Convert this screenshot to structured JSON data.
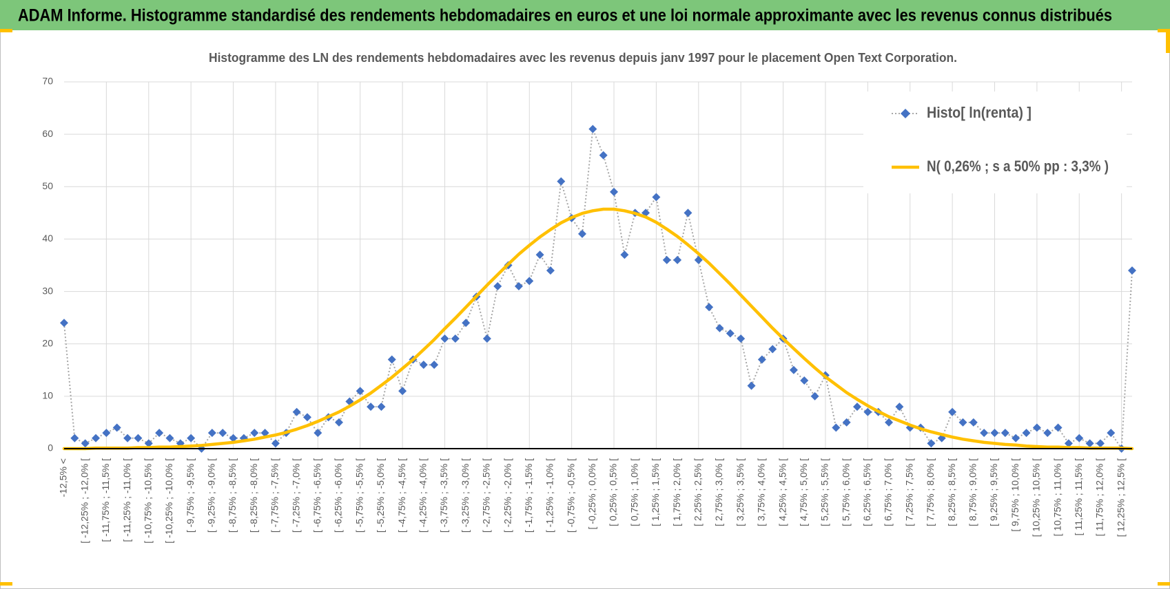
{
  "header": {
    "title": "ADAM Informe. Histogramme standardisé des rendements hebdomadaires en euros et une loi normale approximante avec les revenus connus distribués"
  },
  "chart_data": {
    "type": "line",
    "title": "Histogramme des LN des rendements hebdomadaires avec les revenus depuis janv 1997 pour le placement Open Text Corporation.",
    "categories": [
      "-12,5% <",
      null,
      "[ -12,25% ; -12,0% [",
      null,
      "[ -11,75% ; -11,5% [",
      null,
      "[ -11,25% ; -11,0% [",
      null,
      "[ -10,75% ; -10,5% [",
      null,
      "[ -10,25% ; -10,0% [",
      null,
      "[ -9,75% ; -9,5% [",
      null,
      "[ -9,25% ; -9,0% [",
      null,
      "[ -8,75% ; -8,5% [",
      null,
      "[ -8,25% ; -8,0% [",
      null,
      "[ -7,75% ; -7,5% [",
      null,
      "[ -7,25% ; -7,0% [",
      null,
      "[ -6,75% ; -6,5% [",
      null,
      "[ -6,25% ; -6,0% [",
      null,
      "[ -5,75% ; -5,5% [",
      null,
      "[ -5,25% ; -5,0% [",
      null,
      "[ -4,75% ; -4,5% [",
      null,
      "[ -4,25% ; -4,0% [",
      null,
      "[ -3,75% ; -3,5% [",
      null,
      "[ -3,25% ; -3,0% [",
      null,
      "[ -2,75% ; -2,5% [",
      null,
      "[ -2,25% ; -2,0% [",
      null,
      "[ -1,75% ; -1,5% [",
      null,
      "[ -1,25% ; -1,0% [",
      null,
      "[ -0,75% ; -0,5% [",
      null,
      "[ -0,25% ; 0,0% [",
      null,
      "[ 0,25% ; 0,5% [",
      null,
      "[ 0,75% ; 1,0% [",
      null,
      "[ 1,25% ; 1,5% [",
      null,
      "[ 1,75% ; 2,0% [",
      null,
      "[ 2,25% ; 2,5% [",
      null,
      "[ 2,75% ; 3,0% [",
      null,
      "[ 3,25% ; 3,5% [",
      null,
      "[ 3,75% ; 4,0% [",
      null,
      "[ 4,25% ; 4,5% [",
      null,
      "[ 4,75% ; 5,0% [",
      null,
      "[ 5,25% ; 5,5% [",
      null,
      "[ 5,75% ; 6,0% [",
      null,
      "[ 6,25% ; 6,5% [",
      null,
      "[ 6,75% ; 7,0% [",
      null,
      "[ 7,25% ; 7,5% [",
      null,
      "[ 7,75% ; 8,0% [",
      null,
      "[ 8,25% ; 8,5% [",
      null,
      "[ 8,75% ; 9,0% [",
      null,
      "[ 9,25% ; 9,5% [",
      null,
      "[ 9,75% ; 10,0% [",
      null,
      "[ 10,25% ; 10,5% [",
      null,
      "[ 10,75% ; 11,0% [",
      null,
      "[ 11,25% ; 11,5% [",
      null,
      "[ 11,75% ; 12,0% [",
      null,
      "[ 12,25% ; 12,5% [",
      null
    ],
    "series": [
      {
        "name": "Histo[ ln(renta) ]",
        "color": "#4472c4",
        "line_color": "#a6a6a6",
        "dash": "dotted",
        "marker": "diamond",
        "values": [
          24,
          2,
          1,
          2,
          3,
          4,
          2,
          2,
          1,
          3,
          2,
          1,
          2,
          0,
          3,
          3,
          2,
          2,
          3,
          3,
          1,
          3,
          7,
          6,
          3,
          6,
          5,
          9,
          11,
          8,
          8,
          17,
          11,
          17,
          16,
          16,
          21,
          21,
          24,
          29,
          21,
          31,
          35,
          31,
          32,
          37,
          34,
          51,
          44,
          41,
          61,
          56,
          49,
          37,
          45,
          45,
          48,
          36,
          36,
          45,
          36,
          27,
          23,
          22,
          21,
          12,
          17,
          19,
          21,
          15,
          13,
          10,
          14,
          4,
          5,
          8,
          7,
          7,
          5,
          8,
          4,
          4,
          1,
          2,
          7,
          5,
          5,
          3,
          3,
          3,
          2,
          3,
          4,
          3,
          4,
          1,
          2,
          1,
          1,
          3,
          0,
          34
        ]
      },
      {
        "name": "N( 0,26% ; s a 50% pp : 3,3% )",
        "color": "#ffc000",
        "values": [
          0.0,
          0.0,
          0.0,
          0.1,
          0.1,
          0.1,
          0.1,
          0.2,
          0.2,
          0.3,
          0.3,
          0.4,
          0.5,
          0.6,
          0.8,
          1.0,
          1.2,
          1.5,
          1.8,
          2.2,
          2.6,
          3.1,
          3.7,
          4.4,
          5.2,
          6.1,
          7.0,
          8.1,
          9.3,
          10.6,
          12.1,
          13.6,
          15.3,
          17.0,
          18.9,
          20.8,
          22.9,
          24.9,
          27.0,
          29.1,
          31.2,
          33.2,
          35.2,
          37.1,
          38.8,
          40.4,
          41.8,
          43.1,
          44.1,
          44.9,
          45.4,
          45.7,
          45.7,
          45.4,
          44.9,
          44.2,
          43.2,
          41.9,
          40.5,
          38.9,
          37.2,
          35.4,
          33.4,
          31.4,
          29.3,
          27.2,
          25.1,
          23.0,
          21.0,
          19.1,
          17.2,
          15.4,
          13.7,
          12.2,
          10.7,
          9.4,
          8.2,
          7.1,
          6.1,
          5.3,
          4.5,
          3.8,
          3.2,
          2.7,
          2.2,
          1.8,
          1.5,
          1.2,
          1.0,
          0.8,
          0.7,
          0.5,
          0.4,
          0.3,
          0.3,
          0.2,
          0.2,
          0.1,
          0.1,
          0.1,
          0.1,
          0.0
        ]
      }
    ],
    "ylim": [
      0,
      70
    ],
    "yticks": [
      0,
      10,
      20,
      30,
      40,
      50,
      60,
      70
    ],
    "grid": true,
    "legend": "upper right"
  }
}
